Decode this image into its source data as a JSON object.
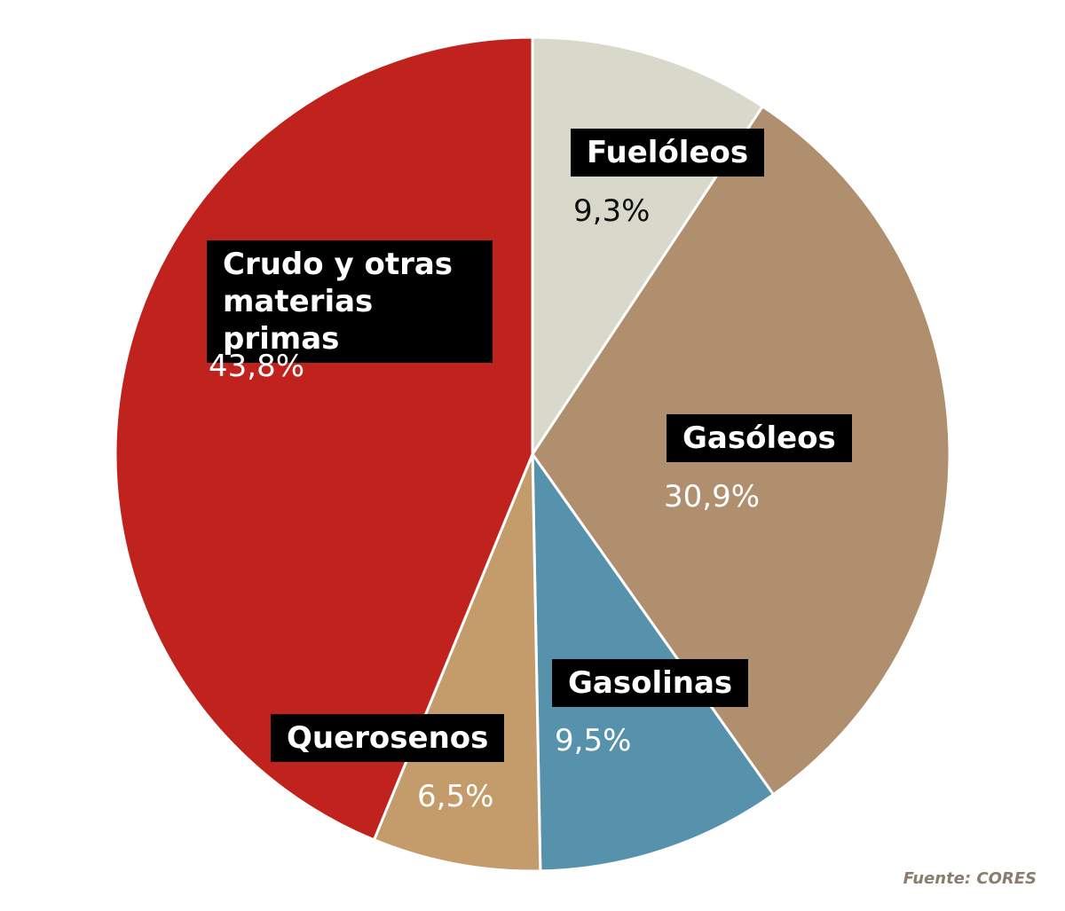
{
  "chart_data": {
    "type": "pie",
    "categories": [
      "Fuelóleos",
      "Gasóleos",
      "Gasolinas",
      "Querosenos",
      "Crudo y otras materias primas"
    ],
    "values": [
      9.3,
      30.9,
      9.5,
      6.5,
      43.8
    ],
    "value_labels": [
      "9,3%",
      "30,9%",
      "9,5%",
      "6,5%",
      "43,8%"
    ],
    "colors": [
      "#d9d9cb",
      "#b08f6f",
      "#5792ad",
      "#c49b6a",
      "#c0231d"
    ],
    "source": "Fuente: CORES"
  }
}
